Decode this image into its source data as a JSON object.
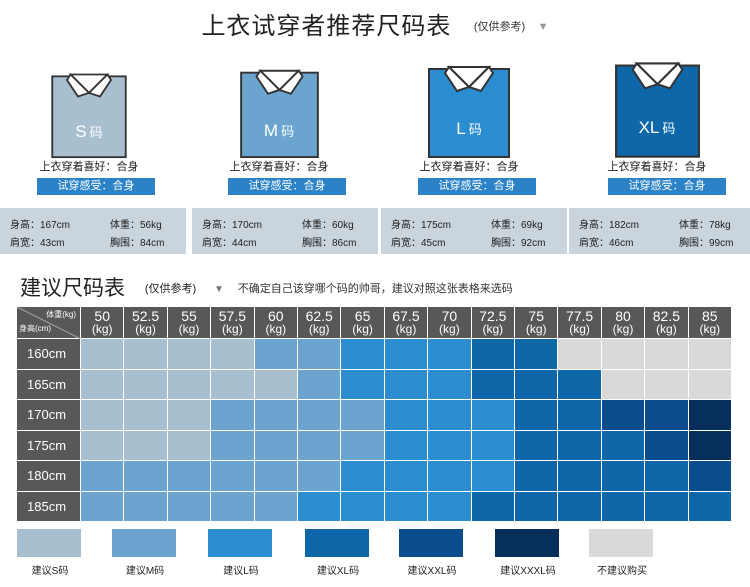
{
  "header": {
    "title": "上衣试穿者推荐尺码表",
    "note": "(仅供参考)",
    "arrow": "▼"
  },
  "colors": {
    "s": "#a8bfd0",
    "m": "#6aa4cf",
    "l": "#2b8dd0",
    "xl": "#0e67a8",
    "xxl": "#0a4d8c",
    "xxxl": "#062f5c",
    "none": "#d9d9d9",
    "header": "#595858",
    "feel": "#2b82c6",
    "measure_bg": "#c9d4dd"
  },
  "shirts": [
    {
      "letter": "S",
      "ma": "码",
      "color": "#a8bfd0",
      "like": "上衣穿着喜好：合身",
      "feel": "试穿感受：合身",
      "height": "身高：167cm",
      "weight": "体重：56kg",
      "shoulder": "肩宽：43cm",
      "chest": "胸围：84cm"
    },
    {
      "letter": "M",
      "ma": "码",
      "color": "#6aa4cf",
      "like": "上衣穿着喜好：合身",
      "feel": "试穿感受：合身",
      "height": "身高：170cm",
      "weight": "体重：60kg",
      "shoulder": "肩宽：44cm",
      "chest": "胸围：86cm"
    },
    {
      "letter": "L",
      "ma": "码",
      "color": "#2b8dd0",
      "like": "上衣穿着喜好：合身",
      "feel": "试穿感受：合身",
      "height": "身高：175cm",
      "weight": "体重：69kg",
      "shoulder": "肩宽：45cm",
      "chest": "胸围：92cm"
    },
    {
      "letter": "XL",
      "ma": "码",
      "color": "#0e67a8",
      "like": "上衣穿着喜好：合身",
      "feel": "试穿感受：合身",
      "height": "身高：182cm",
      "weight": "体重：78kg",
      "shoulder": "肩宽：46cm",
      "chest": "胸围：99cm"
    }
  ],
  "section": {
    "title": "建议尺码表",
    "note": "(仅供参考)",
    "arrow": "▼",
    "desc": "不确定自己该穿哪个码的帅哥，建议对照这张表格来选码"
  },
  "table": {
    "corner_weight": "体重(kg)",
    "corner_height": "身高(cm)",
    "weights": [
      "50",
      "52.5",
      "55",
      "57.5",
      "60",
      "62.5",
      "65",
      "67.5",
      "70",
      "72.5",
      "75",
      "77.5",
      "80",
      "82.5",
      "85"
    ],
    "unit": "(kg)",
    "heights": [
      "160cm",
      "165cm",
      "170cm",
      "175cm",
      "180cm",
      "185cm"
    ],
    "grid": [
      [
        "s",
        "s",
        "s",
        "s",
        "m",
        "m",
        "l",
        "l",
        "l",
        "xl",
        "xl",
        "none",
        "none",
        "none",
        "none"
      ],
      [
        "s",
        "s",
        "s",
        "s",
        "s",
        "m",
        "l",
        "l",
        "l",
        "xl",
        "xl",
        "xl",
        "none",
        "none",
        "none"
      ],
      [
        "s",
        "s",
        "s",
        "m",
        "m",
        "m",
        "m",
        "l",
        "l",
        "l",
        "xl",
        "xl",
        "xxl",
        "xxl",
        "xxxl"
      ],
      [
        "s",
        "s",
        "s",
        "m",
        "m",
        "m",
        "m",
        "l",
        "l",
        "l",
        "xl",
        "xl",
        "xl",
        "xxl",
        "xxxl"
      ],
      [
        "m",
        "m",
        "m",
        "m",
        "m",
        "m",
        "l",
        "l",
        "l",
        "l",
        "xl",
        "xl",
        "xl",
        "xl",
        "xxl"
      ],
      [
        "m",
        "m",
        "m",
        "m",
        "m",
        "l",
        "l",
        "l",
        "l",
        "xl",
        "xl",
        "xl",
        "xl",
        "xl",
        "xl"
      ]
    ]
  },
  "legend": [
    {
      "key": "s",
      "label": "建议S码"
    },
    {
      "key": "m",
      "label": "建议M码"
    },
    {
      "key": "l",
      "label": "建议L码"
    },
    {
      "key": "xl",
      "label": "建议XL码"
    },
    {
      "key": "xxl",
      "label": "建议XXL码"
    },
    {
      "key": "xxxl",
      "label": "建议XXXL码"
    },
    {
      "key": "none",
      "label": "不建议购买"
    }
  ]
}
